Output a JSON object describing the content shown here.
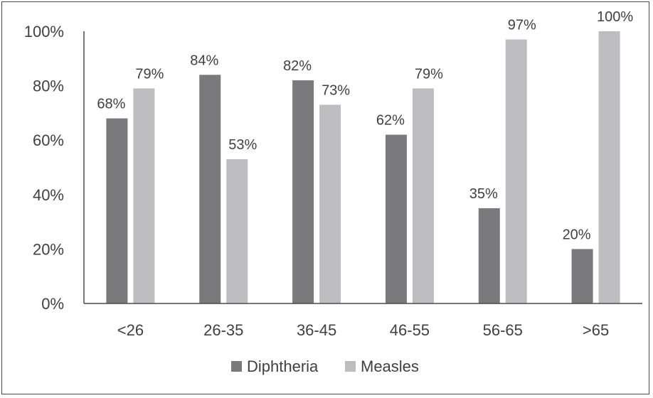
{
  "chart_data": {
    "type": "bar",
    "categories": [
      "<26",
      "26-35",
      "36-45",
      "46-55",
      "56-65",
      ">65"
    ],
    "series": [
      {
        "name": "Diphtheria",
        "values": [
          68,
          84,
          82,
          62,
          35,
          20
        ],
        "labels": [
          "68%",
          "84%",
          "82%",
          "62%",
          "35%",
          "20%"
        ],
        "color": "#7a7a7c"
      },
      {
        "name": "Measles",
        "values": [
          79,
          53,
          73,
          79,
          97,
          100
        ],
        "labels": [
          "79%",
          "53%",
          "73%",
          "79%",
          "97%",
          "100%"
        ],
        "color": "#bdbdbf"
      }
    ],
    "ylim": [
      0,
      100
    ],
    "yticks": [
      0,
      20,
      40,
      60,
      80,
      100
    ],
    "ytick_labels": [
      "0%",
      "20%",
      "40%",
      "60%",
      "80%",
      "100%"
    ],
    "grid": false,
    "legend_position": "bottom",
    "title": "",
    "xlabel": "",
    "ylabel": ""
  }
}
